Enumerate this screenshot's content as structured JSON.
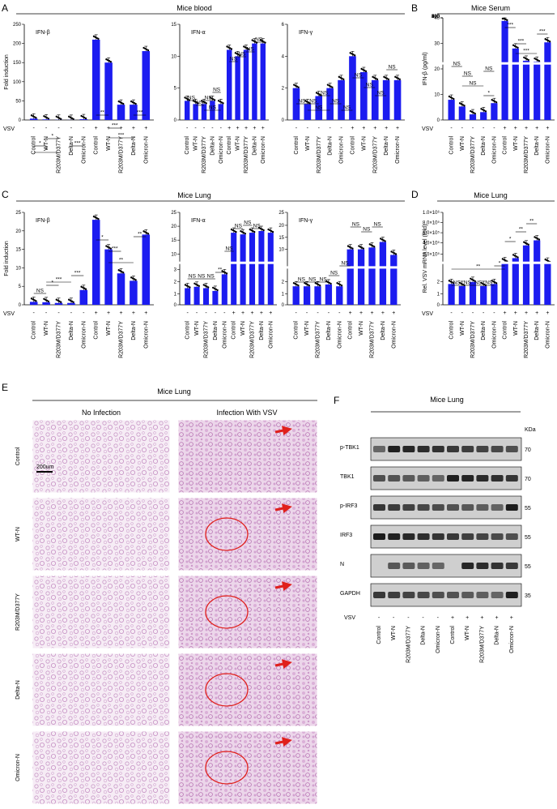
{
  "panels": {
    "A": {
      "letter": "A",
      "title": "Mice blood"
    },
    "B": {
      "letter": "B",
      "title": "Mice Serum"
    },
    "C": {
      "letter": "C",
      "title": "Mice Lung"
    },
    "D": {
      "letter": "D",
      "title": "Mice Lung"
    },
    "E": {
      "letter": "E",
      "title": "Mice Lung",
      "col1": "No Infection",
      "col2": "Infection With VSV",
      "rows": [
        "Control",
        "WT-N",
        "R203M/D377Y",
        "Delta-N",
        "Omicron-N"
      ],
      "scalebar": "200um"
    },
    "F": {
      "letter": "F",
      "title": "Mice Lung",
      "unit": "KDa",
      "vsv_label": "VSV",
      "bands": [
        {
          "name": "p-TBK1",
          "kda": "70"
        },
        {
          "name": "TBK1",
          "kda": "70"
        },
        {
          "name": "p-IRF3",
          "kda": "55"
        },
        {
          "name": "IRF3",
          "kda": "55"
        },
        {
          "name": "N",
          "kda": "55"
        },
        {
          "name": "GAPDH",
          "kda": "35"
        }
      ],
      "vsv_signs": [
        "-",
        "-",
        "-",
        "-",
        "-",
        "+",
        "+",
        "+",
        "+",
        "+"
      ],
      "lanes": [
        "Control",
        "WT-N",
        "R203M/D377Y",
        "Delta-N",
        "Omicron-N",
        "Control",
        "WT-N",
        "R203M/D377Y",
        "Delta-N",
        "Omicron-N"
      ]
    }
  },
  "common": {
    "categories": [
      "Control",
      "WT-N",
      "R203M/D377Y",
      "Delta-N",
      "Omicron-N",
      "Control",
      "WT-N",
      "R203M/D377Y",
      "Delta-N",
      "Omicron-N"
    ],
    "vsv_label": "VSV",
    "vsv_signs": [
      "-",
      "-",
      "-",
      "-",
      "-",
      "+",
      "+",
      "+",
      "+",
      "+"
    ],
    "fold_label": "Fold induction"
  },
  "chart_data": [
    {
      "id": "A-IFNb",
      "type": "bar",
      "cytokine": "IFN-β",
      "ylabel": "Fold induction",
      "yticks": [
        "0",
        "50",
        "100",
        "150",
        "200",
        "250"
      ],
      "ylim": [
        0,
        250
      ],
      "values": [
        3.5,
        1.5,
        0.5,
        0.3,
        2,
        210,
        150,
        40,
        40,
        180
      ],
      "significance": [
        "*",
        "*",
        "*",
        "***",
        "**",
        "***",
        "***",
        "***"
      ]
    },
    {
      "id": "A-IFNa",
      "type": "bar",
      "cytokine": "IFN-α",
      "yticks": [
        "0",
        "5",
        "10",
        "15"
      ],
      "ylim": [
        0,
        15
      ],
      "values": [
        3,
        2.5,
        2.5,
        3,
        2.5,
        11,
        10,
        11,
        12,
        12
      ],
      "significance": [
        "NS",
        "NS",
        "NS",
        "NS",
        "NS",
        "NS",
        "NS",
        "NS",
        "NS"
      ]
    },
    {
      "id": "A-IFNg",
      "type": "bar",
      "cytokine": "IFN-γ",
      "yticks": [
        "0",
        "2",
        "4",
        "6"
      ],
      "ylim": [
        0,
        6
      ],
      "values": [
        2,
        1,
        1.5,
        2,
        2.5,
        4,
        3,
        2.5,
        2.5,
        2.5
      ],
      "significance": [
        "NS",
        "NS",
        "NS",
        "NS",
        "NS",
        "NS",
        "NS",
        "NS",
        "NS",
        "NS"
      ]
    },
    {
      "id": "B-IFNb",
      "type": "bar",
      "ylabel": "IFN-β (pg/ml)",
      "yticks": [
        "0",
        "10",
        "20",
        "30",
        "40",
        "50",
        "100",
        "200",
        "300",
        "400",
        "500"
      ],
      "values": [
        18,
        12,
        5,
        7,
        15,
        470,
        200,
        80,
        70,
        260
      ],
      "significance": [
        "NS",
        "NS",
        "NS",
        "NS",
        "*",
        "***",
        "***",
        "***",
        "***"
      ]
    },
    {
      "id": "C-IFNb",
      "type": "bar",
      "cytokine": "IFN-β",
      "ylabel": "Fold induction",
      "yticks": [
        "0",
        "5",
        "10",
        "15",
        "20",
        "25"
      ],
      "ylim": [
        0,
        25
      ],
      "values": [
        0.8,
        0.7,
        0.5,
        0.5,
        4,
        23,
        15,
        8.5,
        6.5,
        19
      ],
      "significance": [
        "NS",
        "***",
        "*",
        "***",
        "*",
        "**",
        "***",
        "**"
      ]
    },
    {
      "id": "C-IFNa",
      "type": "bar",
      "cytokine": "IFN-α",
      "yticks": [
        "0",
        "1",
        "2",
        "3",
        "10",
        "15",
        "20",
        "25"
      ],
      "values": [
        1.2,
        1.3,
        1.2,
        1.0,
        2.2,
        19,
        18.5,
        19,
        19.5,
        19
      ],
      "significance": [
        "NS",
        "NS",
        "NS",
        "**",
        "NS",
        "NS",
        "NS",
        "NS"
      ]
    },
    {
      "id": "C-IFNg",
      "type": "bar",
      "cytokine": "IFN-γ",
      "yticks": [
        "0",
        "1",
        "2",
        "10",
        "15",
        "20",
        "25"
      ],
      "values": [
        1.0,
        1.0,
        1.0,
        1.1,
        1.0,
        15,
        15,
        15.5,
        17,
        13.5
      ],
      "significance": [
        "NS",
        "NS",
        "NS",
        "NS",
        "NS",
        "NS",
        "NS",
        "NS"
      ]
    },
    {
      "id": "D-VSV",
      "type": "bar",
      "ylabel": "Rel. VSV mRNA level (fold)",
      "yticks": [
        "0",
        "1",
        "2",
        "2.0×10⁵",
        "4.0×10⁵",
        "6.0×10⁵",
        "8.0×10⁵",
        "1.0×10⁶"
      ],
      "values": [
        1,
        0.9,
        1.1,
        0.9,
        1,
        20000,
        100000,
        350000,
        450000,
        10000
      ],
      "significance": [
        "NS",
        "NS",
        "NS",
        "NS",
        "**",
        "*",
        "*",
        "**",
        "**"
      ]
    }
  ]
}
